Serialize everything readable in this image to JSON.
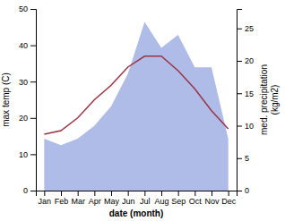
{
  "chart_data": {
    "type": "line",
    "xlabel": "date (month)",
    "ylabel": "max temp (C)",
    "y2label": "med. precipitation\n(kg/m2)",
    "categories": [
      "Jan",
      "Feb",
      "Mar",
      "Apr",
      "May",
      "Jun",
      "Jul",
      "Aug",
      "Sep",
      "Oct",
      "Nov",
      "Dec"
    ],
    "series": [
      {
        "type": "area",
        "axis": "y2",
        "color": "#b0bce8",
        "values": [
          8,
          7,
          8,
          10,
          13,
          18,
          26,
          22,
          24,
          19,
          19,
          8
        ]
      },
      {
        "type": "line",
        "color": "#993344",
        "values": [
          15.5,
          16.5,
          20,
          25,
          29,
          34,
          37,
          37,
          33,
          28,
          22,
          17
        ]
      }
    ],
    "ylim": [
      0,
      50
    ],
    "yticks": [
      0,
      10,
      20,
      30,
      40,
      50
    ],
    "y2lim": [
      0,
      28
    ],
    "y2ticks": [
      0,
      5,
      10,
      15,
      20,
      25
    ]
  }
}
